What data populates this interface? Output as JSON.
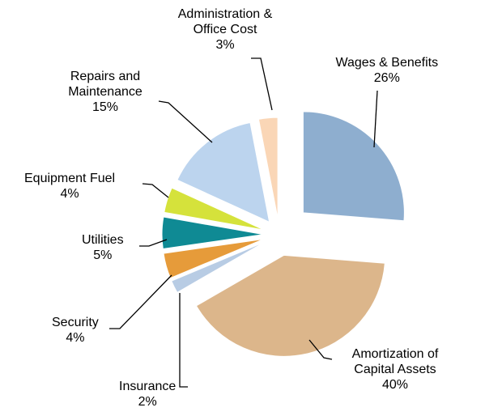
{
  "chart_data": {
    "type": "pie",
    "categories": [
      "Wages & Benefits",
      "Amortization of Capital Assets",
      "Insurance",
      "Security",
      "Utilities",
      "Equipment Fuel",
      "Repairs and Maintenance",
      "Administration & Office Cost"
    ],
    "values": [
      26,
      40,
      2,
      4,
      5,
      4,
      15,
      3
    ],
    "value_labels": [
      "26%",
      "40%",
      "2%",
      "4%",
      "5%",
      "4%",
      "15%",
      "3%"
    ],
    "colors": [
      "#8eaecf",
      "#dcb68b",
      "#b8cce4",
      "#e69b3a",
      "#0f8a94",
      "#d5e23b",
      "#bcd4ee",
      "#fad6b6"
    ]
  }
}
